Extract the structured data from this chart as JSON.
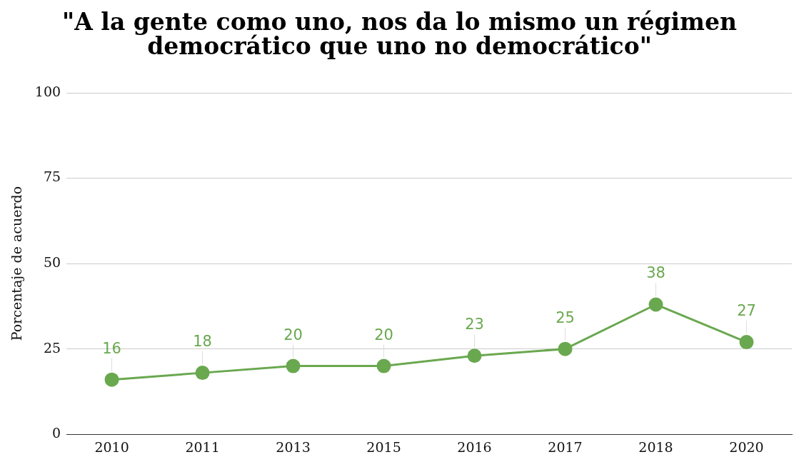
{
  "chart_data": {
    "type": "line",
    "title": "\"A la gente como uno, nos da lo mismo un régimen democrático que uno no democrático\"",
    "ylabel": "Porcentaje de acuerdo",
    "categories": [
      "2010",
      "2011",
      "2013",
      "2015",
      "2016",
      "2017",
      "2018",
      "2020"
    ],
    "series": [
      {
        "color": "#6aa84f",
        "values": [
          16,
          18,
          20,
          20,
          23,
          25,
          38,
          27
        ]
      }
    ],
    "ylim": [
      0,
      100
    ],
    "yticks": [
      0,
      25,
      50,
      75,
      100
    ],
    "grid": "y",
    "marker": "circle",
    "line_style": "solid",
    "data_labels": true,
    "legend": false
  }
}
